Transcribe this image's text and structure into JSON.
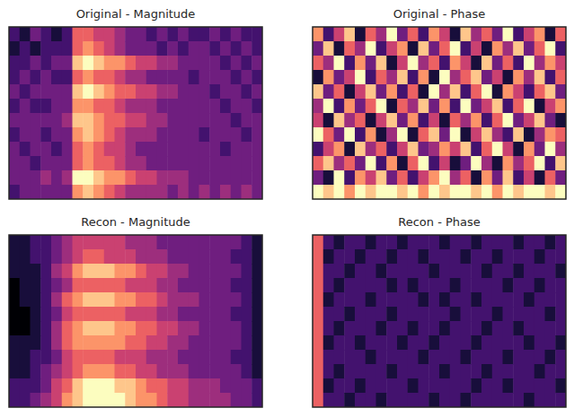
{
  "chart_data": [
    {
      "type": "heatmap",
      "title": "Original - Magnitude",
      "tick_labels": false,
      "zlim": [
        0,
        9
      ],
      "cells": [
        [
          2,
          1,
          3,
          2,
          1,
          2,
          6,
          6,
          5,
          5,
          4,
          3,
          3,
          2,
          3,
          2,
          3,
          2,
          2,
          3,
          2,
          3,
          2,
          2
        ],
        [
          1,
          2,
          1,
          2,
          2,
          2,
          6,
          7,
          6,
          5,
          4,
          3,
          3,
          3,
          2,
          3,
          2,
          3,
          3,
          2,
          3,
          2,
          3,
          2
        ],
        [
          2,
          2,
          3,
          2,
          3,
          3,
          8,
          9,
          8,
          7,
          7,
          6,
          5,
          5,
          4,
          4,
          3,
          3,
          3,
          3,
          2,
          3,
          2,
          3
        ],
        [
          2,
          3,
          2,
          3,
          2,
          2,
          6,
          7,
          6,
          6,
          5,
          4,
          4,
          3,
          3,
          3,
          3,
          2,
          3,
          3,
          3,
          2,
          3,
          2
        ],
        [
          3,
          2,
          3,
          3,
          3,
          3,
          8,
          9,
          8,
          7,
          6,
          6,
          5,
          5,
          4,
          4,
          3,
          3,
          3,
          2,
          3,
          3,
          2,
          3
        ],
        [
          2,
          3,
          2,
          2,
          3,
          3,
          7,
          7,
          6,
          6,
          5,
          4,
          4,
          4,
          3,
          3,
          3,
          3,
          3,
          3,
          2,
          3,
          3,
          2
        ],
        [
          3,
          3,
          3,
          3,
          3,
          4,
          8,
          8,
          7,
          6,
          6,
          5,
          5,
          4,
          4,
          3,
          3,
          3,
          3,
          3,
          3,
          2,
          3,
          3
        ],
        [
          2,
          3,
          3,
          2,
          3,
          3,
          7,
          8,
          7,
          6,
          5,
          4,
          4,
          4,
          3,
          3,
          3,
          3,
          2,
          3,
          3,
          3,
          2,
          3
        ],
        [
          3,
          2,
          3,
          3,
          2,
          3,
          6,
          7,
          6,
          5,
          5,
          4,
          3,
          3,
          3,
          3,
          3,
          3,
          3,
          3,
          2,
          3,
          3,
          3
        ],
        [
          3,
          3,
          2,
          3,
          3,
          3,
          6,
          7,
          6,
          6,
          5,
          4,
          4,
          3,
          3,
          3,
          3,
          3,
          3,
          3,
          3,
          3,
          3,
          3
        ],
        [
          3,
          3,
          3,
          4,
          3,
          4,
          9,
          9,
          8,
          7,
          7,
          6,
          5,
          5,
          4,
          4,
          4,
          3,
          3,
          3,
          3,
          3,
          3,
          3
        ],
        [
          2,
          3,
          3,
          3,
          3,
          3,
          7,
          8,
          7,
          6,
          5,
          4,
          4,
          4,
          4,
          3,
          4,
          3,
          4,
          3,
          4,
          3,
          4,
          3
        ]
      ]
    },
    {
      "type": "heatmap",
      "title": "Original - Phase",
      "tick_labels": false,
      "zlim": [
        0,
        9
      ],
      "cells": [
        [
          7,
          2,
          5,
          8,
          1,
          6,
          4,
          9,
          3,
          6,
          2,
          7,
          5,
          1,
          8,
          4,
          6,
          3,
          9,
          2,
          5,
          7,
          1,
          6
        ],
        [
          3,
          8,
          1,
          6,
          4,
          9,
          2,
          5,
          7,
          1,
          8,
          3,
          6,
          9,
          2,
          5,
          1,
          7,
          4,
          8,
          3,
          6,
          9,
          2
        ],
        [
          6,
          4,
          9,
          2,
          7,
          3,
          8,
          1,
          5,
          9,
          4,
          6,
          2,
          7,
          5,
          1,
          8,
          3,
          6,
          2,
          9,
          4,
          7,
          5
        ],
        [
          1,
          7,
          3,
          5,
          9,
          2,
          6,
          4,
          8,
          2,
          7,
          1,
          9,
          4,
          6,
          8,
          3,
          5,
          1,
          7,
          4,
          8,
          2,
          6
        ],
        [
          8,
          3,
          6,
          1,
          5,
          8,
          3,
          7,
          2,
          6,
          1,
          9,
          4,
          8,
          2,
          6,
          9,
          1,
          7,
          5,
          2,
          6,
          8,
          3
        ],
        [
          4,
          9,
          2,
          7,
          3,
          6,
          9,
          1,
          6,
          4,
          8,
          3,
          7,
          2,
          9,
          3,
          5,
          8,
          2,
          6,
          9,
          1,
          5,
          7
        ],
        [
          5,
          1,
          8,
          4,
          6,
          1,
          5,
          8,
          3,
          7,
          2,
          5,
          1,
          6,
          4,
          7,
          2,
          6,
          9,
          3,
          5,
          8,
          3,
          1
        ],
        [
          9,
          6,
          3,
          9,
          2,
          7,
          1,
          4,
          9,
          1,
          6,
          8,
          3,
          9,
          1,
          5,
          8,
          4,
          2,
          8,
          1,
          4,
          7,
          6
        ],
        [
          2,
          5,
          7,
          1,
          8,
          4,
          6,
          2,
          5,
          8,
          3,
          4,
          7,
          5,
          8,
          2,
          6,
          9,
          5,
          1,
          7,
          3,
          9,
          4
        ],
        [
          6,
          8,
          4,
          6,
          3,
          9,
          2,
          7,
          1,
          6,
          9,
          2,
          5,
          1,
          3,
          9,
          4,
          1,
          7,
          4,
          6,
          9,
          2,
          8
        ],
        [
          3,
          1,
          9,
          2,
          7,
          5,
          8,
          3,
          6,
          2,
          5,
          7,
          9,
          4,
          6,
          1,
          7,
          3,
          8,
          2,
          5,
          1,
          6,
          3
        ],
        [
          9,
          8,
          9,
          7,
          9,
          8,
          9,
          9,
          8,
          9,
          7,
          9,
          8,
          9,
          9,
          8,
          9,
          7,
          9,
          8,
          9,
          9,
          8,
          9
        ]
      ]
    },
    {
      "type": "heatmap",
      "title": "Recon - Magnitude",
      "tick_labels": false,
      "zlim": [
        0,
        9
      ],
      "cells": [
        [
          1,
          1,
          2,
          2,
          3,
          4,
          5,
          5,
          5,
          5,
          5,
          4,
          4,
          4,
          3,
          3,
          3,
          3,
          3,
          3,
          3,
          3,
          2,
          1
        ],
        [
          1,
          1,
          2,
          2,
          3,
          4,
          5,
          6,
          6,
          5,
          5,
          5,
          4,
          4,
          4,
          3,
          3,
          3,
          3,
          3,
          3,
          2,
          2,
          1
        ],
        [
          1,
          1,
          1,
          2,
          4,
          5,
          7,
          8,
          8,
          8,
          7,
          7,
          6,
          5,
          5,
          4,
          4,
          3,
          3,
          3,
          3,
          3,
          2,
          1
        ],
        [
          0,
          1,
          1,
          2,
          3,
          4,
          6,
          6,
          6,
          6,
          6,
          5,
          5,
          5,
          4,
          4,
          3,
          3,
          3,
          3,
          3,
          2,
          2,
          1
        ],
        [
          0,
          1,
          1,
          2,
          4,
          6,
          7,
          8,
          8,
          8,
          7,
          7,
          6,
          6,
          5,
          4,
          4,
          4,
          3,
          3,
          3,
          3,
          2,
          1
        ],
        [
          0,
          0,
          1,
          2,
          3,
          5,
          6,
          6,
          6,
          6,
          6,
          5,
          5,
          5,
          4,
          4,
          3,
          3,
          3,
          3,
          3,
          2,
          2,
          1
        ],
        [
          0,
          0,
          1,
          2,
          4,
          6,
          7,
          8,
          8,
          8,
          7,
          7,
          6,
          6,
          5,
          5,
          4,
          4,
          3,
          3,
          3,
          3,
          2,
          1
        ],
        [
          1,
          1,
          1,
          2,
          4,
          6,
          7,
          7,
          7,
          7,
          7,
          6,
          6,
          5,
          5,
          4,
          4,
          3,
          3,
          3,
          3,
          3,
          2,
          1
        ],
        [
          1,
          1,
          2,
          2,
          3,
          5,
          6,
          6,
          6,
          6,
          5,
          5,
          5,
          4,
          4,
          4,
          3,
          3,
          3,
          3,
          3,
          2,
          2,
          1
        ],
        [
          1,
          1,
          2,
          3,
          4,
          5,
          6,
          7,
          7,
          7,
          6,
          6,
          5,
          5,
          4,
          4,
          4,
          3,
          3,
          3,
          3,
          3,
          2,
          1
        ],
        [
          2,
          2,
          2,
          3,
          5,
          6,
          8,
          9,
          9,
          9,
          8,
          8,
          7,
          6,
          6,
          5,
          5,
          4,
          4,
          4,
          3,
          3,
          3,
          2
        ],
        [
          2,
          2,
          3,
          4,
          5,
          7,
          8,
          9,
          9,
          9,
          9,
          8,
          7,
          7,
          6,
          5,
          5,
          4,
          4,
          4,
          4,
          3,
          3,
          2
        ]
      ]
    },
    {
      "type": "heatmap",
      "title": "Recon - Phase",
      "tick_labels": false,
      "zlim": [
        0,
        9
      ],
      "cells": [
        [
          6,
          2,
          1,
          2,
          2,
          1,
          2,
          2,
          1,
          2,
          2,
          2,
          1,
          2,
          2,
          1,
          2,
          2,
          2,
          1,
          2,
          2,
          1,
          2
        ],
        [
          6,
          1,
          2,
          2,
          1,
          2,
          2,
          1,
          2,
          2,
          1,
          2,
          2,
          2,
          1,
          2,
          2,
          1,
          2,
          2,
          2,
          1,
          2,
          2
        ],
        [
          6,
          2,
          2,
          1,
          2,
          2,
          1,
          2,
          2,
          2,
          2,
          1,
          2,
          2,
          2,
          2,
          1,
          2,
          2,
          1,
          2,
          2,
          2,
          1
        ],
        [
          6,
          2,
          1,
          2,
          2,
          2,
          2,
          1,
          2,
          1,
          2,
          2,
          2,
          1,
          2,
          2,
          2,
          2,
          1,
          2,
          2,
          1,
          2,
          2
        ],
        [
          6,
          1,
          2,
          2,
          2,
          1,
          2,
          2,
          2,
          2,
          1,
          2,
          1,
          2,
          2,
          1,
          2,
          2,
          2,
          2,
          1,
          2,
          2,
          2
        ],
        [
          6,
          2,
          2,
          1,
          2,
          2,
          2,
          1,
          2,
          2,
          2,
          2,
          2,
          1,
          2,
          2,
          2,
          1,
          2,
          2,
          2,
          2,
          1,
          2
        ],
        [
          6,
          2,
          1,
          2,
          2,
          2,
          1,
          2,
          2,
          1,
          2,
          2,
          1,
          2,
          2,
          2,
          1,
          2,
          2,
          1,
          2,
          2,
          2,
          2
        ],
        [
          6,
          1,
          2,
          2,
          1,
          2,
          2,
          2,
          1,
          2,
          2,
          1,
          2,
          2,
          2,
          1,
          2,
          2,
          2,
          2,
          1,
          2,
          2,
          1
        ],
        [
          6,
          2,
          2,
          2,
          2,
          1,
          2,
          2,
          2,
          2,
          1,
          2,
          2,
          2,
          1,
          2,
          2,
          2,
          1,
          2,
          2,
          2,
          1,
          2
        ],
        [
          6,
          2,
          1,
          2,
          2,
          2,
          2,
          1,
          2,
          2,
          2,
          2,
          1,
          2,
          2,
          2,
          1,
          2,
          2,
          2,
          2,
          1,
          2,
          2
        ],
        [
          6,
          1,
          2,
          2,
          1,
          2,
          2,
          2,
          2,
          1,
          2,
          2,
          2,
          2,
          2,
          1,
          2,
          2,
          1,
          2,
          2,
          2,
          2,
          1
        ],
        [
          6,
          2,
          2,
          1,
          2,
          2,
          1,
          2,
          2,
          2,
          2,
          1,
          2,
          2,
          1,
          2,
          2,
          2,
          2,
          2,
          1,
          2,
          2,
          2
        ]
      ]
    }
  ]
}
